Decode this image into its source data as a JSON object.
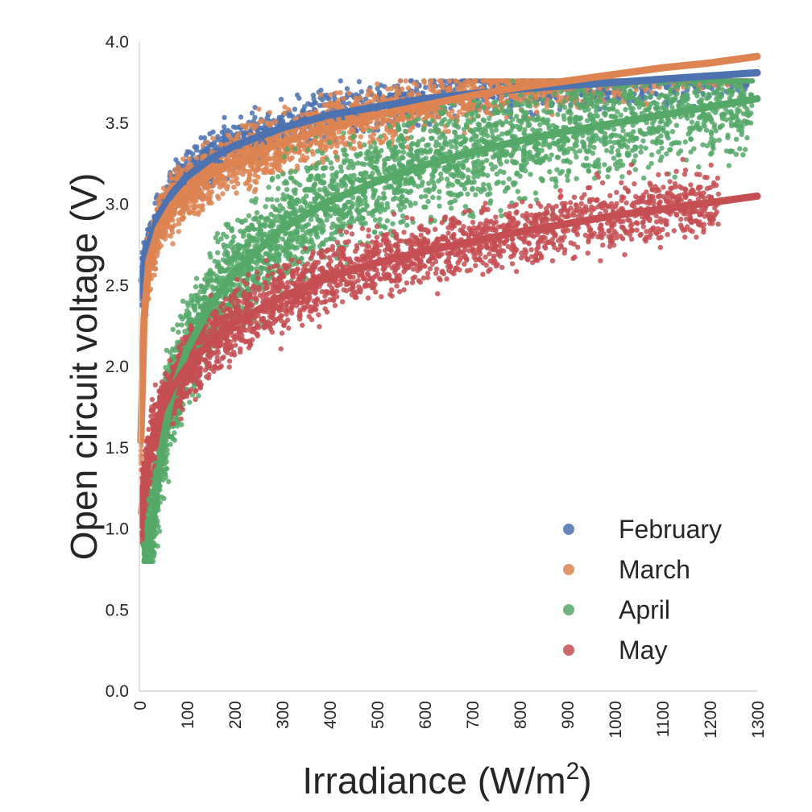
{
  "chart_data": {
    "type": "scatter",
    "xlabel": "Irradiance (W/m",
    "xlabel_sup": "2",
    "xlabel_tail": ")",
    "ylabel": "Open circuit voltage (V)",
    "xlim": [
      0,
      1300
    ],
    "ylim": [
      0.0,
      4.0
    ],
    "x_ticks": [
      "0",
      "100",
      "200",
      "300",
      "400",
      "500",
      "600",
      "700",
      "800",
      "900",
      "1000",
      "1100",
      "1200",
      "1300"
    ],
    "y_ticks": [
      "0.0",
      "0.5",
      "1.0",
      "1.5",
      "2.0",
      "2.5",
      "3.0",
      "3.5",
      "4.0"
    ],
    "grid": false,
    "legend_position": "lower-right",
    "series": [
      {
        "name": "February",
        "color": "#4c72b0",
        "fit_x": [
          5,
          10,
          20,
          40,
          70,
          100,
          150,
          200,
          300,
          400,
          500,
          600,
          700,
          800,
          900,
          1000,
          1100,
          1200,
          1300
        ],
        "fit_y": [
          2.53,
          2.6,
          2.75,
          2.93,
          3.07,
          3.17,
          3.28,
          3.36,
          3.47,
          3.55,
          3.6,
          3.65,
          3.68,
          3.71,
          3.73,
          3.75,
          3.77,
          3.79,
          3.81
        ],
        "scatter_x_range": [
          5,
          1280
        ],
        "scatter_spread": 0.12,
        "scatter_points": 1800
      },
      {
        "name": "March",
        "color": "#dd8452",
        "fit_x": [
          3,
          10,
          20,
          40,
          70,
          100,
          150,
          200,
          300,
          400,
          500,
          600,
          700,
          800,
          900,
          1000,
          1100,
          1200,
          1300
        ],
        "fit_y": [
          1.54,
          2.3,
          2.65,
          2.85,
          3.0,
          3.08,
          3.18,
          3.26,
          3.38,
          3.47,
          3.55,
          3.61,
          3.67,
          3.72,
          3.76,
          3.8,
          3.84,
          3.87,
          3.91
        ],
        "scatter_x_range": [
          3,
          1290
        ],
        "scatter_spread": 0.15,
        "scatter_points": 2400
      },
      {
        "name": "April",
        "color": "#55a868",
        "fit_x": [
          10,
          20,
          30,
          50,
          70,
          100,
          150,
          200,
          300,
          400,
          500,
          600,
          700,
          800,
          900,
          1000,
          1100,
          1200,
          1300
        ],
        "fit_y": [
          0.9,
          0.92,
          1.1,
          1.55,
          1.85,
          2.1,
          2.38,
          2.58,
          2.85,
          3.02,
          3.14,
          3.24,
          3.32,
          3.39,
          3.45,
          3.5,
          3.55,
          3.6,
          3.65
        ],
        "scatter_x_range": [
          10,
          1290
        ],
        "scatter_spread": 0.28,
        "scatter_points": 3600
      },
      {
        "name": "May",
        "color": "#c44e52",
        "fit_x": [
          5,
          10,
          20,
          30,
          50,
          70,
          100,
          150,
          200,
          300,
          400,
          500,
          600,
          700,
          800,
          900,
          1000,
          1100,
          1200,
          1300
        ],
        "fit_y": [
          1.1,
          1.28,
          1.45,
          1.58,
          1.75,
          1.87,
          2.0,
          2.15,
          2.27,
          2.43,
          2.55,
          2.64,
          2.71,
          2.77,
          2.83,
          2.88,
          2.93,
          2.97,
          3.01,
          3.05
        ],
        "scatter_x_range": [
          5,
          1220
        ],
        "scatter_spread": 0.17,
        "scatter_points": 2600
      }
    ]
  }
}
